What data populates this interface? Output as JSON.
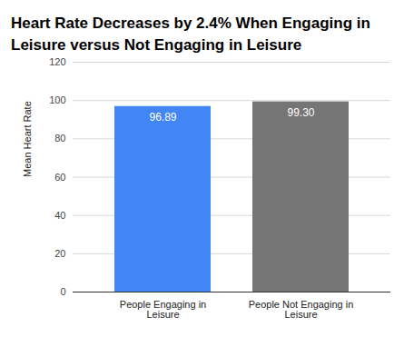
{
  "chart_data": {
    "type": "bar",
    "title": "Heart Rate Decreases by 2.4% When Engaging in Leisure versus Not Engaging in Leisure",
    "y_label": "Mean Heart Rate",
    "categories": [
      "People Engaging in Leisure",
      "People Not Engaging in Leisure"
    ],
    "values": [
      96.89,
      99.3
    ],
    "value_labels": [
      "96.89",
      "99.30"
    ],
    "colors": [
      "#4285f4",
      "#757575"
    ],
    "ylim": [
      0,
      120
    ],
    "yticks": [
      0,
      20,
      40,
      60,
      80,
      100,
      120
    ],
    "grid": true,
    "data_labels": true
  }
}
